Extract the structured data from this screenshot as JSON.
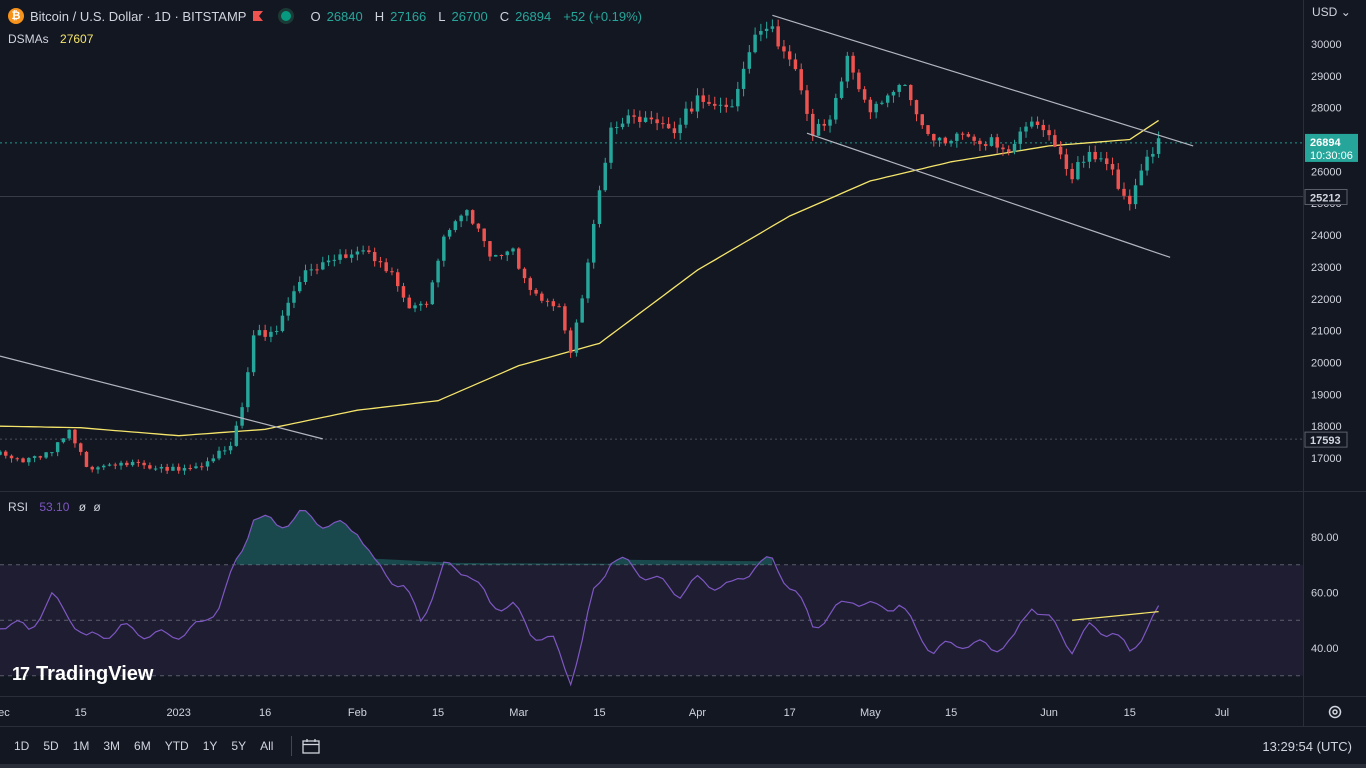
{
  "header": {
    "symbol": "Bitcoin / U.S. Dollar · 1D · BITSTAMP",
    "symbol_icon": "bitcoin-icon",
    "ohlc": {
      "o_label": "O",
      "o": "26840",
      "h_label": "H",
      "h": "27166",
      "l_label": "L",
      "l": "26700",
      "c_label": "C",
      "c": "26894",
      "change": "+52 (+0.19%)"
    }
  },
  "ma_legend": {
    "name": "DSMAs",
    "value": "27607"
  },
  "rsi_legend": {
    "name": "RSI",
    "value": "53.10",
    "na1": "ø",
    "na2": "ø"
  },
  "currency": "USD",
  "brand": {
    "name": "TradingView",
    "icon": "tradingview-logo-icon"
  },
  "toolbar": {
    "ranges": [
      "1D",
      "5D",
      "1M",
      "3M",
      "6M",
      "YTD",
      "1Y",
      "5Y",
      "All"
    ],
    "goto_icon": "calendar-goto-icon",
    "clock": "13:29:54 (UTC)",
    "settings_icon": "gear-icon"
  },
  "colors": {
    "bg": "#131722",
    "up": "#26a69a",
    "down": "#ef5350",
    "ma": "#f5e56b",
    "rsi": "#7e57c2",
    "line": "#b2b5be"
  },
  "chart_data": [
    {
      "type": "candlestick",
      "title": "Bitcoin / U.S. Dollar · 1D · BITSTAMP",
      "x_range": [
        "2022-12-01",
        "2023-07-01"
      ],
      "ylim": [
        16400,
        30900
      ],
      "y_ticks": [
        17000,
        18000,
        19000,
        20000,
        21000,
        22000,
        23000,
        24000,
        25000,
        26000,
        27000,
        28000,
        29000,
        30000
      ],
      "x_ticks": [
        {
          "date": "2022-12-01",
          "label": "Dec"
        },
        {
          "date": "2022-12-15",
          "label": "15"
        },
        {
          "date": "2023-01-01",
          "label": "2023"
        },
        {
          "date": "2023-01-16",
          "label": "16"
        },
        {
          "date": "2023-02-01",
          "label": "Feb"
        },
        {
          "date": "2023-02-15",
          "label": "15"
        },
        {
          "date": "2023-03-01",
          "label": "Mar"
        },
        {
          "date": "2023-03-15",
          "label": "15"
        },
        {
          "date": "2023-04-01",
          "label": "Apr"
        },
        {
          "date": "2023-04-17",
          "label": "17"
        },
        {
          "date": "2023-05-01",
          "label": "May"
        },
        {
          "date": "2023-05-15",
          "label": "15"
        },
        {
          "date": "2023-06-01",
          "label": "Jun"
        },
        {
          "date": "2023-06-15",
          "label": "15"
        },
        {
          "date": "2023-07-01",
          "label": "Jul"
        }
      ],
      "close_anchors": [
        [
          "2022-12-01",
          17100
        ],
        [
          "2022-12-05",
          17000
        ],
        [
          "2022-12-10",
          17150
        ],
        [
          "2022-12-13",
          17800
        ],
        [
          "2022-12-16",
          16700
        ],
        [
          "2022-12-22",
          16850
        ],
        [
          "2022-12-30",
          16550
        ],
        [
          "2023-01-05",
          16850
        ],
        [
          "2023-01-10",
          17300
        ],
        [
          "2023-01-12",
          18500
        ],
        [
          "2023-01-14",
          20800
        ],
        [
          "2023-01-18",
          21100
        ],
        [
          "2023-01-22",
          22700
        ],
        [
          "2023-01-28",
          23100
        ],
        [
          "2023-02-02",
          23650
        ],
        [
          "2023-02-06",
          23000
        ],
        [
          "2023-02-10",
          21700
        ],
        [
          "2023-02-13",
          21800
        ],
        [
          "2023-02-16",
          24100
        ],
        [
          "2023-02-20",
          24800
        ],
        [
          "2023-02-24",
          23300
        ],
        [
          "2023-02-28",
          23400
        ],
        [
          "2023-03-03",
          22350
        ],
        [
          "2023-03-08",
          21700
        ],
        [
          "2023-03-10",
          20200
        ],
        [
          "2023-03-12",
          22000
        ],
        [
          "2023-03-14",
          24200
        ],
        [
          "2023-03-17",
          27400
        ],
        [
          "2023-03-20",
          27800
        ],
        [
          "2023-03-24",
          27500
        ],
        [
          "2023-03-28",
          27100
        ],
        [
          "2023-04-01",
          28400
        ],
        [
          "2023-04-07",
          28000
        ],
        [
          "2023-04-11",
          30200
        ],
        [
          "2023-04-14",
          30400
        ],
        [
          "2023-04-18",
          29400
        ],
        [
          "2023-04-21",
          27300
        ],
        [
          "2023-04-24",
          27500
        ],
        [
          "2023-04-27",
          29400
        ],
        [
          "2023-05-01",
          28000
        ],
        [
          "2023-05-06",
          28900
        ],
        [
          "2023-05-09",
          27700
        ],
        [
          "2023-05-12",
          26800
        ],
        [
          "2023-05-17",
          27300
        ],
        [
          "2023-05-22",
          26900
        ],
        [
          "2023-05-25",
          26400
        ],
        [
          "2023-05-29",
          27700
        ],
        [
          "2023-06-01",
          27200
        ],
        [
          "2023-06-05",
          25900
        ],
        [
          "2023-06-08",
          26500
        ],
        [
          "2023-06-12",
          25900
        ],
        [
          "2023-06-15",
          25100
        ],
        [
          "2023-06-18",
          26500
        ],
        [
          "2023-06-20",
          26894
        ]
      ],
      "ma_anchors": [
        [
          "2022-12-01",
          18000
        ],
        [
          "2022-12-15",
          17950
        ],
        [
          "2023-01-01",
          17700
        ],
        [
          "2023-01-16",
          17900
        ],
        [
          "2023-02-01",
          18500
        ],
        [
          "2023-02-15",
          18800
        ],
        [
          "2023-03-01",
          19900
        ],
        [
          "2023-03-15",
          20600
        ],
        [
          "2023-04-01",
          22900
        ],
        [
          "2023-04-17",
          24600
        ],
        [
          "2023-05-01",
          25700
        ],
        [
          "2023-05-15",
          26300
        ],
        [
          "2023-06-01",
          26800
        ],
        [
          "2023-06-15",
          27000
        ],
        [
          "2023-06-20",
          27600
        ]
      ],
      "trendlines": [
        {
          "from": [
            "2022-12-01",
            20200
          ],
          "to": [
            "2023-01-26",
            17600
          ]
        },
        {
          "from": [
            "2023-04-14",
            30900
          ],
          "to": [
            "2023-06-26",
            26800
          ]
        },
        {
          "from": [
            "2023-04-20",
            27200
          ],
          "to": [
            "2023-06-22",
            23300
          ]
        }
      ],
      "price_labels": [
        {
          "value": "26894",
          "sub": "10:30:06",
          "y": 26894,
          "color": "#26a69a"
        },
        {
          "value": "25212",
          "y": 25212,
          "color": "#d1d4dc"
        },
        {
          "value": "17593",
          "y": 17593,
          "color": "#d1d4dc"
        }
      ],
      "horizontal_lines": [
        26894,
        25212,
        17593
      ]
    },
    {
      "type": "line",
      "title": "RSI",
      "ylim": [
        25,
        95
      ],
      "y_ticks": [
        40,
        60,
        80
      ],
      "band": [
        30,
        70
      ],
      "middle": 50,
      "anchors": [
        [
          "2022-12-01",
          49
        ],
        [
          "2022-12-06",
          47
        ],
        [
          "2022-12-10",
          58
        ],
        [
          "2022-12-13",
          52
        ],
        [
          "2022-12-16",
          43
        ],
        [
          "2022-12-22",
          47
        ],
        [
          "2022-12-30",
          44
        ],
        [
          "2023-01-05",
          48
        ],
        [
          "2023-01-08",
          56
        ],
        [
          "2023-01-12",
          75
        ],
        [
          "2023-01-14",
          88
        ],
        [
          "2023-01-18",
          84
        ],
        [
          "2023-01-22",
          88
        ],
        [
          "2023-01-28",
          84
        ],
        [
          "2023-02-01",
          83
        ],
        [
          "2023-02-04",
          70
        ],
        [
          "2023-02-09",
          62
        ],
        [
          "2023-02-12",
          50
        ],
        [
          "2023-02-16",
          69
        ],
        [
          "2023-02-20",
          68
        ],
        [
          "2023-02-24",
          56
        ],
        [
          "2023-02-28",
          55
        ],
        [
          "2023-03-03",
          46
        ],
        [
          "2023-03-07",
          42
        ],
        [
          "2023-03-10",
          29
        ],
        [
          "2023-03-12",
          42
        ],
        [
          "2023-03-14",
          60
        ],
        [
          "2023-03-17",
          72
        ],
        [
          "2023-03-20",
          70
        ],
        [
          "2023-03-25",
          64
        ],
        [
          "2023-03-29",
          60
        ],
        [
          "2023-04-01",
          64
        ],
        [
          "2023-04-07",
          62
        ],
        [
          "2023-04-11",
          70
        ],
        [
          "2023-04-14",
          71
        ],
        [
          "2023-04-18",
          60
        ],
        [
          "2023-04-21",
          48
        ],
        [
          "2023-04-24",
          52
        ],
        [
          "2023-04-28",
          58
        ],
        [
          "2023-05-02",
          54
        ],
        [
          "2023-05-06",
          56
        ],
        [
          "2023-05-09",
          46
        ],
        [
          "2023-05-12",
          39
        ],
        [
          "2023-05-17",
          42
        ],
        [
          "2023-05-22",
          40
        ],
        [
          "2023-05-26",
          43
        ],
        [
          "2023-05-29",
          56
        ],
        [
          "2023-06-01",
          50
        ],
        [
          "2023-06-05",
          40
        ],
        [
          "2023-06-08",
          47
        ],
        [
          "2023-06-12",
          46
        ],
        [
          "2023-06-15",
          38
        ],
        [
          "2023-06-18",
          48
        ],
        [
          "2023-06-20",
          53.1
        ]
      ],
      "divergence_line": {
        "from": [
          "2023-06-05",
          50
        ],
        "to": [
          "2023-06-20",
          53.1
        ]
      }
    }
  ]
}
